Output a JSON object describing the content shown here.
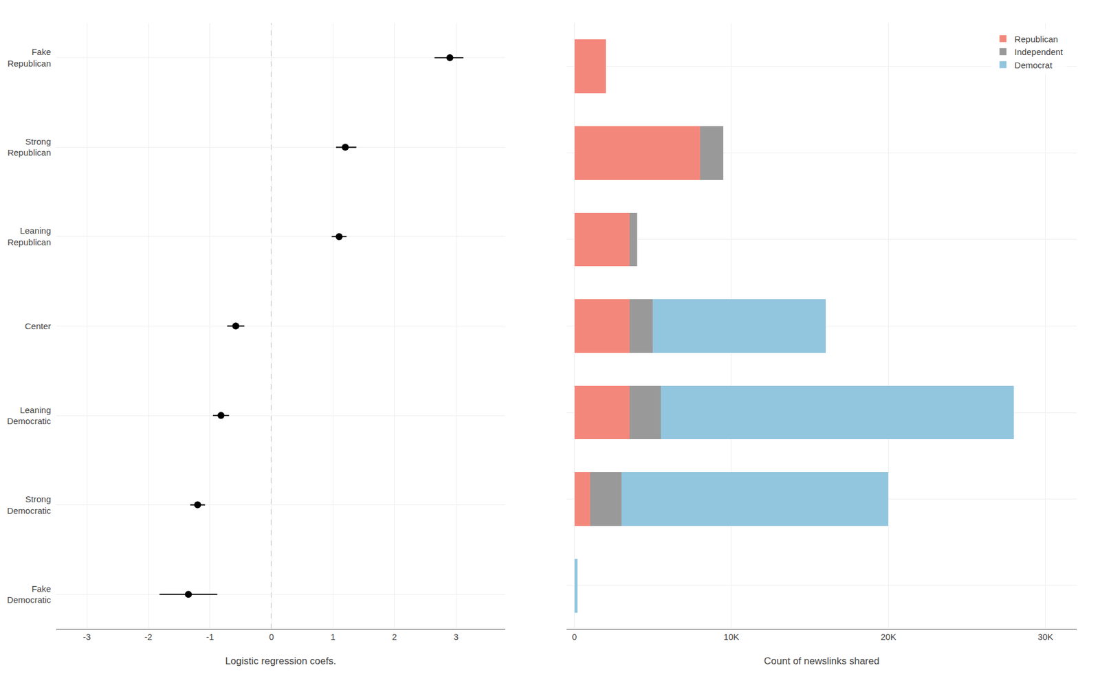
{
  "chart_data": [
    {
      "type": "scatter",
      "orientation": "horizontal",
      "categories": [
        "Fake\nRepublican",
        "Strong\nRepublican",
        "Leaning\nRepublican",
        "Center",
        "Leaning\nDemocratic",
        "Strong\nDemocratic",
        "Fake\nDemocratic"
      ],
      "values": [
        2.9,
        1.2,
        1.1,
        -0.58,
        -0.82,
        -1.2,
        -1.35
      ],
      "ci_low": [
        2.65,
        1.05,
        0.98,
        -0.72,
        -0.95,
        -1.32,
        -1.82
      ],
      "ci_high": [
        3.12,
        1.38,
        1.22,
        -0.44,
        -0.69,
        -1.08,
        -0.88
      ],
      "color": "#000000",
      "marker": "circle",
      "xlabel": "Logistic regression coefs.",
      "xlim": [
        -3.5,
        3.8
      ],
      "xticks": [
        -3,
        -2,
        -1,
        0,
        1,
        2,
        3
      ],
      "grid": true,
      "reference_line": {
        "value": 0,
        "color": "#aaaaaa",
        "line_style": "dashed"
      }
    },
    {
      "type": "bar",
      "orientation": "horizontal",
      "stacked": true,
      "categories": [
        "Fake\nRepublican",
        "Strong\nRepublican",
        "Leaning\nRepublican",
        "Center",
        "Leaning\nDemocratic",
        "Strong\nDemocratic",
        "Fake\nDemocratic"
      ],
      "series": [
        {
          "name": "Republican",
          "color": "#F4877B",
          "values": [
            2000,
            8000,
            3500,
            3500,
            3500,
            1000,
            0
          ]
        },
        {
          "name": "Independent",
          "color": "#999999",
          "values": [
            0,
            1500,
            500,
            1500,
            2000,
            2000,
            0
          ]
        },
        {
          "name": "Democrat",
          "color": "#92C5DE",
          "values": [
            0,
            0,
            0,
            11000,
            22500,
            17000,
            200
          ]
        }
      ],
      "xlabel": "Count of newslinks shared",
      "xlim": [
        -500,
        32000
      ],
      "xticks": [
        0,
        {
          "value": 10000,
          "label": "10K"
        },
        {
          "value": 20000,
          "label": "20K"
        },
        {
          "value": 30000,
          "label": "30K"
        }
      ],
      "grid": true,
      "legend": "upper right",
      "tick_labels": "x"
    }
  ]
}
